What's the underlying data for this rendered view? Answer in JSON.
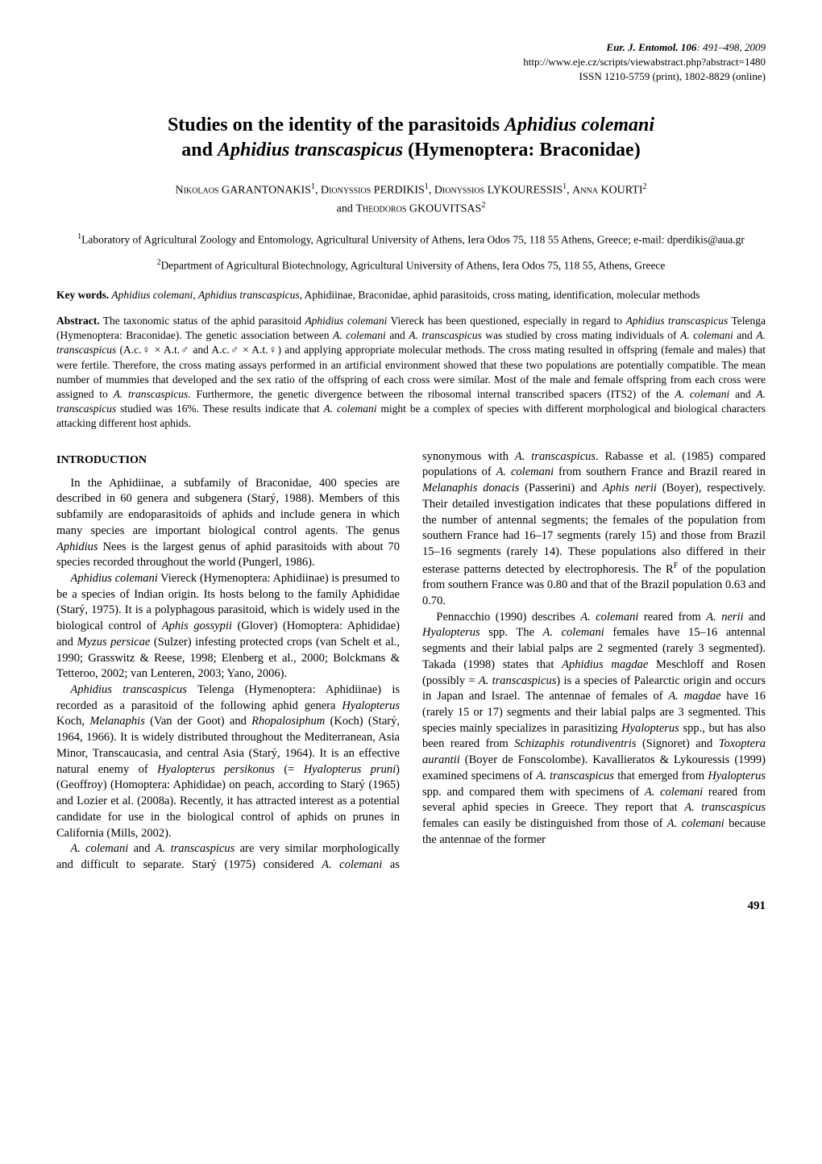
{
  "journal": {
    "line1_prefix": "Eur. J. Entomol.",
    "line1_vol": " 106",
    "line1_rest": ": 491–498, 2009",
    "line2": "http://www.eje.cz/scripts/viewabstract.php?abstract=1480",
    "line3": "ISSN 1210-5759 (print), 1802-8829 (online)"
  },
  "title": {
    "t1": "Studies on the identity of the parasitoids ",
    "t2": "Aphidius colemani",
    "t3": " and ",
    "t4": "Aphidius transcaspicus",
    "t5": " (Hymenoptera: Braconidae)"
  },
  "authors": {
    "a1_first": "Nikolaos",
    "a1_last": " GARANTONAKIS",
    "sep1": ", ",
    "a2_first": "Dionyssios",
    "a2_last": " PERDIKIS",
    "sep2": ", ",
    "a3_first": "Dionyssios",
    "a3_last": " LYKOURESSIS",
    "sep3": ", ",
    "a4_first": "Anna",
    "a4_last": " KOURTI",
    "and": "and ",
    "a5_first": "Theodoros",
    "a5_last": " GKOUVITSAS",
    "sup1": "1",
    "sup2": "2"
  },
  "affil1": "Laboratory of Agricultural Zoology and Entomology, Agricultural University of Athens, Iera Odos 75, 118 55 Athens, Greece; e-mail: dperdikis@aua.gr",
  "affil2": "Department of Agricultural Biotechnology, Agricultural University of Athens, Iera Odos 75, 118 55, Athens, Greece",
  "keywords": {
    "label": "Key words.",
    "t1": " Aphidius colemani",
    "t2": ", ",
    "t3": "Aphidius transcaspicus",
    "t4": ", Aphidiinae, Braconidae, aphid parasitoids, cross mating, identification, molecular methods"
  },
  "abstract": {
    "label": "Abstract.",
    "s1": " The taxonomic status of the aphid parasitoid ",
    "s2": "Aphidius colemani",
    "s3": " Viereck has been questioned, especially in regard to ",
    "s4": "Aphidius transcaspicus",
    "s5": " Telenga (Hymenoptera: Braconidae). The genetic association between ",
    "s6": "A. colemani",
    "s7": " and ",
    "s8": "A. transcaspicus",
    "s9": " was studied by cross mating individuals of ",
    "s10": "A. colemani",
    "s11": " and ",
    "s12": "A. transcaspicus",
    "s13": " (A.c.♀ × A.t.♂ and A.c.♂ × A.t.♀) and applying appropriate molecular methods. The cross mating resulted in offspring (female and males) that were fertile. Therefore, the cross mating assays performed in an artificial environment showed that these two populations are potentially compatible. The mean number of mummies that developed and the sex ratio of the offspring of each cross were similar. Most of the male and female offspring from each cross were assigned to ",
    "s14": "A. transcaspicus.",
    "s15": " Furthermore, the genetic divergence between the ribosomal internal transcribed spacers (ITS2) of the ",
    "s16": "A. colemani",
    "s17": " and ",
    "s18": "A. transcaspicus",
    "s19": " studied was 16%. These results indicate that ",
    "s20": "A. colemani",
    "s21": " might be a complex of species with different morphological and biological characters attacking different host aphids."
  },
  "intro_heading": "INTRODUCTION",
  "body": {
    "p1": "In the Aphidiinae, a subfamily of Braconidae, 400 species are described in 60 genera and subgenera (Starý, 1988). Members of this subfamily are endoparasitoids of aphids and include genera in which many species are important biological control agents. The genus ",
    "p1i1": "Aphidius",
    "p1b": " Nees is the largest genus of aphid parasitoids with about 70 species recorded throughout the world (Pungerl, 1986).",
    "p2i1": "Aphidius colemani",
    "p2a": " Viereck (Hymenoptera: Aphidiinae) is presumed to be a species of Indian origin. Its hosts belong to the family Aphididae (Starý, 1975). It is a polyphagous parasitoid, which is widely used in the biological control of ",
    "p2i2": "Aphis gossypii",
    "p2b": " (Glover) (Homoptera: Aphididae) and ",
    "p2i3": "Myzus persicae",
    "p2c": " (Sulzer) infesting protected crops (van Schelt et al., 1990; Grasswitz & Reese, 1998; Elenberg et al., 2000; Bolckmans & Tetteroo, 2002; van Lenteren, 2003; Yano, 2006).",
    "p3i1": "Aphidius transcaspicus",
    "p3a": " Telenga (Hymenoptera: Aphidiinae) is recorded as a parasitoid of the following aphid genera ",
    "p3i2": "Hyalopterus",
    "p3b": " Koch, ",
    "p3i3": "Melanaphis",
    "p3c": " (Van der Goot) and ",
    "p3i4": "Rhopalosiphum",
    "p3d": " (Koch) (Starý, 1964, 1966). It is widely distributed throughout the Mediterranean, Asia Minor, Transcaucasia, and central Asia (Starý, 1964). It is an effective natural enemy of ",
    "p3i5": "Hyalopterus persikonus",
    "p3e": " (= ",
    "p3i6": "Hyalopterus pruni",
    "p3f": ") (Geoffroy) (Homoptera: Aphididae) on peach, according to Starý (1965) and Lozier et al. (2008a). Recently, it has attracted interest as a potential candidate for use in the biological control of aphids on prunes in California (Mills, 2002).",
    "p4i1": "A. colemani",
    "p4a": " and ",
    "p4i2": "A. transcaspicus",
    "p4b": " are very similar morphologically and difficult to separate. Starý (1975) considered ",
    "p4i3": "A. colemani",
    "p4c": " as synonymous with ",
    "p4i4": "A. transcaspicus",
    "p4d": ". Rabasse et al. (1985) compared populations of ",
    "p4i5": "A. colemani",
    "p4e": " from southern France and Brazil reared in ",
    "p4i6": "Melanaphis donacis",
    "p4f": " (Passerini) and ",
    "p4i7": "Aphis nerii",
    "p4g": " (Boyer), respectively. Their detailed investigation indicates that these populations differed in the number of antennal segments; the females of the population from southern France had 16–17 segments (rarely 15) and those from Brazil 15–16 segments (rarely 14). These populations also differed in their esterase patterns detected by electrophoresis. The R",
    "p4sup": "F",
    "p4h": " of the population from southern France was 0.80 and that of the Brazil population 0.63 and 0.70.",
    "p5a": "Pennacchio (1990) describes ",
    "p5i1": "A. colemani",
    "p5b": " reared from ",
    "p5i2": "A. nerii",
    "p5c": " and ",
    "p5i3": "Hyalopterus",
    "p5d": " spp. The ",
    "p5i4": "A. colemani",
    "p5e": " females have 15–16 antennal segments and their labial palps are 2 segmented (rarely 3 segmented). Takada (1998) states that ",
    "p5i5": "Aphidius magdae",
    "p5f": " Meschloff and Rosen (possibly = ",
    "p5i6": "A. transcaspicus",
    "p5g": ") is a species of Palearctic origin and occurs in Japan and Israel. The antennae of females of ",
    "p5i7": "A. magdae",
    "p5h": " have 16 (rarely 15 or 17) segments and their labial palps are 3 segmented. This species mainly specializes in parasitizing ",
    "p5i8": "Hyalopterus",
    "p5i": " spp., but has also been reared from ",
    "p5i9": "Schizaphis rotundiventris",
    "p5j": " (Signoret) and ",
    "p5i10": "Toxoptera aurantii",
    "p5k": " (Boyer de Fonscolombe). Kavallieratos & Lykouressis (1999) examined specimens of ",
    "p5i11": "A. transcaspicus",
    "p5l": " that emerged from ",
    "p5i12": "Hyalopterus",
    "p5m": " spp. and compared them with specimens of ",
    "p5i13": "A. colemani",
    "p5n": " reared from several aphid species in Greece. They report that ",
    "p5i14": "A. transcaspicus",
    "p5o": " females can easily be distinguished from those of ",
    "p5i15": "A. colemani",
    "p5p": " because the antennae of the former"
  },
  "page_number": "491"
}
